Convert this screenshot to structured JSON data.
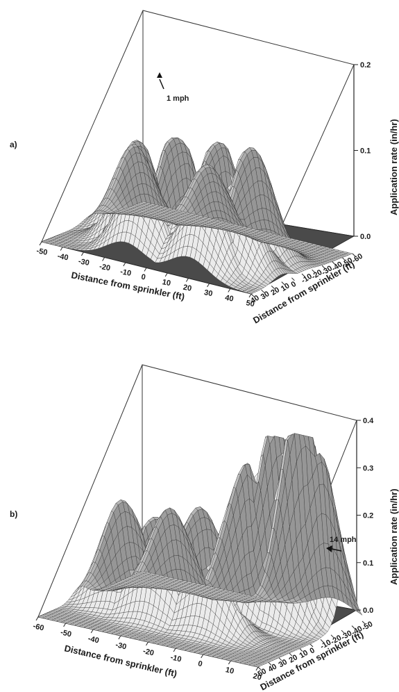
{
  "figure": {
    "panels": [
      {
        "tag": "a)",
        "wind_label": "1 mph",
        "x_label": "Distance from sprinkler (ft)",
        "y_label": "Distance from sprinkler (ft)",
        "z_label": "Application rate (in/hr)"
      },
      {
        "tag": "b)",
        "wind_label": "14 mph",
        "x_label": "Distance from sprinkler (ft)",
        "y_label": "Distance from sprinkler (ft)",
        "z_label": "Application rate (in/hr)"
      }
    ]
  },
  "chart_data": [
    {
      "type": "surface",
      "panel": "a)",
      "annotation": "1 mph",
      "xlabel": "Distance from sprinkler (ft)",
      "ylabel": "Distance from sprinkler (ft)",
      "zlabel": "Application rate (in/hr)",
      "x_ticks": [
        "-50",
        "-40",
        "-30",
        "-20",
        "-10",
        "0",
        "10",
        "20",
        "30",
        "40",
        "50"
      ],
      "y_ticks": [
        "40",
        "30",
        "20",
        "10",
        "0",
        "-10",
        "-20",
        "-30",
        "-40",
        "-50",
        "-60"
      ],
      "z_ticks": [
        "0.0",
        "0.1",
        "0.2"
      ],
      "xlim": [
        -50,
        50
      ],
      "ylim": [
        -60,
        40
      ],
      "zlim": [
        0,
        0.2
      ],
      "grid": false,
      "surface_peaks": [
        {
          "x": -20,
          "y": 10,
          "z": 0.11
        },
        {
          "x": 0,
          "y": 10,
          "z": 0.12
        },
        {
          "x": 15,
          "y": 0,
          "z": 0.115
        },
        {
          "x": 25,
          "y": -15,
          "z": 0.12
        },
        {
          "x": -30,
          "y": -10,
          "z": 0.1
        },
        {
          "x": 30,
          "y": 10,
          "z": 0.1
        },
        {
          "x": 0,
          "y": -20,
          "z": 0.09
        },
        {
          "x": -10,
          "y": 25,
          "z": 0.095
        },
        {
          "x": 20,
          "y": 25,
          "z": 0.1
        }
      ]
    },
    {
      "type": "surface",
      "panel": "b)",
      "annotation": "14 mph",
      "xlabel": "Distance from sprinkler (ft)",
      "ylabel": "Distance from sprinkler (ft)",
      "zlabel": "Application rate (in/hr)",
      "x_ticks": [
        "-60",
        "-50",
        "-40",
        "-30",
        "-20",
        "-10",
        "0",
        "10",
        "20"
      ],
      "y_ticks": [
        "50",
        "40",
        "30",
        "20",
        "10",
        "0",
        "-10",
        "-20",
        "-30",
        "-40",
        "-50"
      ],
      "z_ticks": [
        "0.0",
        "0.1",
        "0.2",
        "0.3",
        "0.4"
      ],
      "xlim": [
        -60,
        20
      ],
      "ylim": [
        -50,
        50
      ],
      "zlim": [
        0,
        0.4
      ],
      "grid": false,
      "surface_peaks": [
        {
          "x": -45,
          "y": 10,
          "z": 0.22
        },
        {
          "x": -35,
          "y": -10,
          "z": 0.2
        },
        {
          "x": -20,
          "y": 0,
          "z": 0.22
        },
        {
          "x": -10,
          "y": -15,
          "z": 0.27
        },
        {
          "x": 0,
          "y": -20,
          "z": 0.35
        },
        {
          "x": 5,
          "y": -30,
          "z": 0.38
        },
        {
          "x": 10,
          "y": -35,
          "z": 0.28
        },
        {
          "x": -30,
          "y": 15,
          "z": 0.2
        },
        {
          "x": -10,
          "y": 15,
          "z": 0.18
        }
      ]
    }
  ]
}
